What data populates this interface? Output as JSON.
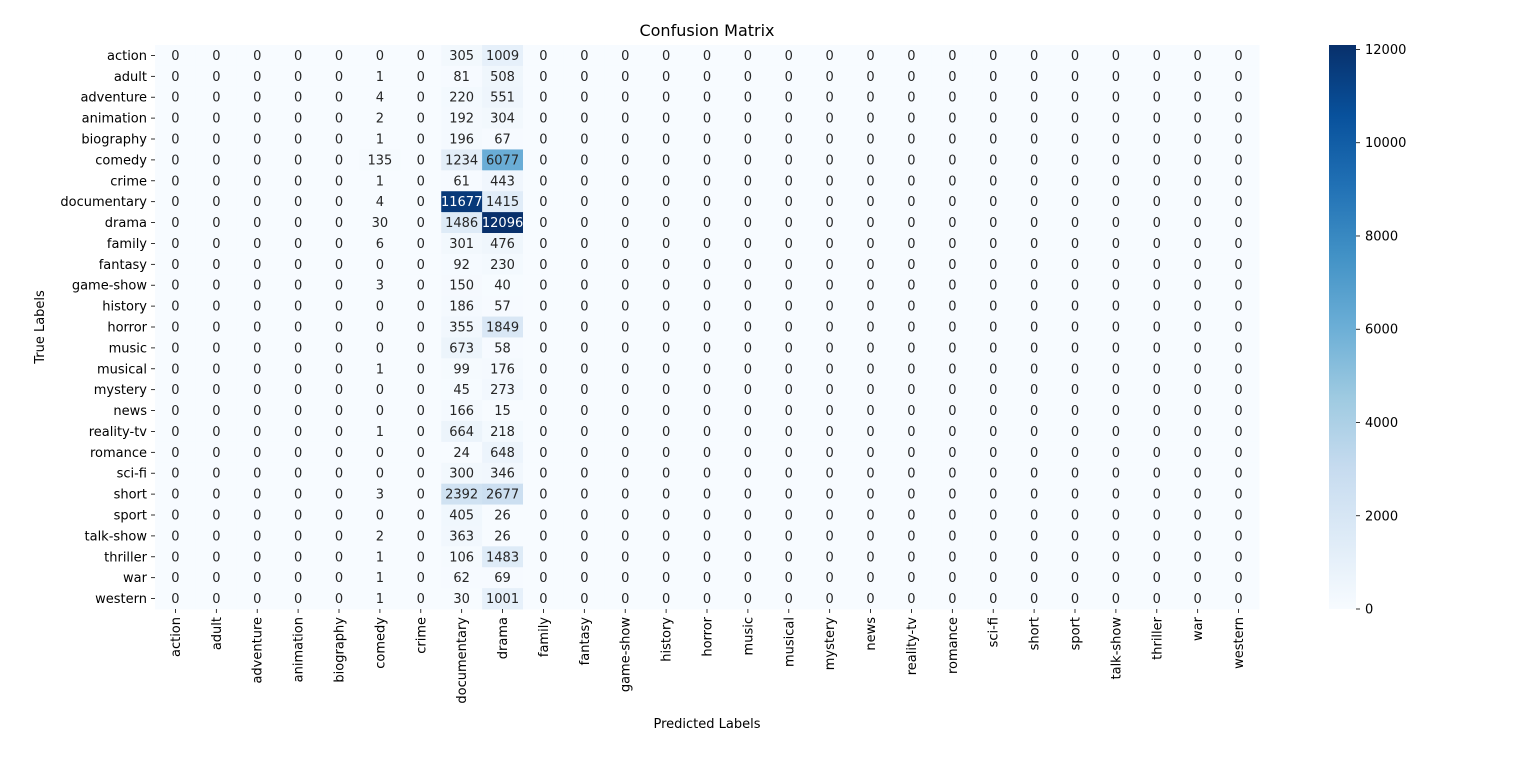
{
  "chart_data": {
    "type": "heatmap",
    "title": "Confusion Matrix",
    "xlabel": "Predicted Labels",
    "ylabel": "True Labels",
    "labels": [
      "action",
      "adult",
      "adventure",
      "animation",
      "biography",
      "comedy",
      "crime",
      "documentary",
      "drama",
      "family",
      "fantasy",
      "game-show",
      "history",
      "horror",
      "music",
      "musical",
      "mystery",
      "news",
      "reality-tv",
      "romance",
      "sci-fi",
      "short",
      "sport",
      "talk-show",
      "thriller",
      "war",
      "western"
    ],
    "matrix": [
      [
        0,
        0,
        0,
        0,
        0,
        0,
        0,
        305,
        1009,
        0,
        0,
        0,
        0,
        0,
        0,
        0,
        0,
        0,
        0,
        0,
        0,
        0,
        0,
        0,
        0,
        0,
        0
      ],
      [
        0,
        0,
        0,
        0,
        0,
        1,
        0,
        81,
        508,
        0,
        0,
        0,
        0,
        0,
        0,
        0,
        0,
        0,
        0,
        0,
        0,
        0,
        0,
        0,
        0,
        0,
        0
      ],
      [
        0,
        0,
        0,
        0,
        0,
        4,
        0,
        220,
        551,
        0,
        0,
        0,
        0,
        0,
        0,
        0,
        0,
        0,
        0,
        0,
        0,
        0,
        0,
        0,
        0,
        0,
        0
      ],
      [
        0,
        0,
        0,
        0,
        0,
        2,
        0,
        192,
        304,
        0,
        0,
        0,
        0,
        0,
        0,
        0,
        0,
        0,
        0,
        0,
        0,
        0,
        0,
        0,
        0,
        0,
        0
      ],
      [
        0,
        0,
        0,
        0,
        0,
        1,
        0,
        196,
        67,
        0,
        0,
        0,
        0,
        0,
        0,
        0,
        0,
        0,
        0,
        0,
        0,
        0,
        0,
        0,
        0,
        0,
        0
      ],
      [
        0,
        0,
        0,
        0,
        0,
        135,
        0,
        1234,
        6077,
        0,
        0,
        0,
        0,
        0,
        0,
        0,
        0,
        0,
        0,
        0,
        0,
        0,
        0,
        0,
        0,
        0,
        0
      ],
      [
        0,
        0,
        0,
        0,
        0,
        1,
        0,
        61,
        443,
        0,
        0,
        0,
        0,
        0,
        0,
        0,
        0,
        0,
        0,
        0,
        0,
        0,
        0,
        0,
        0,
        0,
        0
      ],
      [
        0,
        0,
        0,
        0,
        0,
        4,
        0,
        11677,
        1415,
        0,
        0,
        0,
        0,
        0,
        0,
        0,
        0,
        0,
        0,
        0,
        0,
        0,
        0,
        0,
        0,
        0,
        0
      ],
      [
        0,
        0,
        0,
        0,
        0,
        30,
        0,
        1486,
        12096,
        0,
        0,
        0,
        0,
        0,
        0,
        0,
        0,
        0,
        0,
        0,
        0,
        0,
        0,
        0,
        0,
        0,
        0
      ],
      [
        0,
        0,
        0,
        0,
        0,
        6,
        0,
        301,
        476,
        0,
        0,
        0,
        0,
        0,
        0,
        0,
        0,
        0,
        0,
        0,
        0,
        0,
        0,
        0,
        0,
        0,
        0
      ],
      [
        0,
        0,
        0,
        0,
        0,
        0,
        0,
        92,
        230,
        0,
        0,
        0,
        0,
        0,
        0,
        0,
        0,
        0,
        0,
        0,
        0,
        0,
        0,
        0,
        0,
        0,
        0
      ],
      [
        0,
        0,
        0,
        0,
        0,
        3,
        0,
        150,
        40,
        0,
        0,
        0,
        0,
        0,
        0,
        0,
        0,
        0,
        0,
        0,
        0,
        0,
        0,
        0,
        0,
        0,
        0
      ],
      [
        0,
        0,
        0,
        0,
        0,
        0,
        0,
        186,
        57,
        0,
        0,
        0,
        0,
        0,
        0,
        0,
        0,
        0,
        0,
        0,
        0,
        0,
        0,
        0,
        0,
        0,
        0
      ],
      [
        0,
        0,
        0,
        0,
        0,
        0,
        0,
        355,
        1849,
        0,
        0,
        0,
        0,
        0,
        0,
        0,
        0,
        0,
        0,
        0,
        0,
        0,
        0,
        0,
        0,
        0,
        0
      ],
      [
        0,
        0,
        0,
        0,
        0,
        0,
        0,
        673,
        58,
        0,
        0,
        0,
        0,
        0,
        0,
        0,
        0,
        0,
        0,
        0,
        0,
        0,
        0,
        0,
        0,
        0,
        0
      ],
      [
        0,
        0,
        0,
        0,
        0,
        1,
        0,
        99,
        176,
        0,
        0,
        0,
        0,
        0,
        0,
        0,
        0,
        0,
        0,
        0,
        0,
        0,
        0,
        0,
        0,
        0,
        0
      ],
      [
        0,
        0,
        0,
        0,
        0,
        0,
        0,
        45,
        273,
        0,
        0,
        0,
        0,
        0,
        0,
        0,
        0,
        0,
        0,
        0,
        0,
        0,
        0,
        0,
        0,
        0,
        0
      ],
      [
        0,
        0,
        0,
        0,
        0,
        0,
        0,
        166,
        15,
        0,
        0,
        0,
        0,
        0,
        0,
        0,
        0,
        0,
        0,
        0,
        0,
        0,
        0,
        0,
        0,
        0,
        0
      ],
      [
        0,
        0,
        0,
        0,
        0,
        1,
        0,
        664,
        218,
        0,
        0,
        0,
        0,
        0,
        0,
        0,
        0,
        0,
        0,
        0,
        0,
        0,
        0,
        0,
        0,
        0,
        0
      ],
      [
        0,
        0,
        0,
        0,
        0,
        0,
        0,
        24,
        648,
        0,
        0,
        0,
        0,
        0,
        0,
        0,
        0,
        0,
        0,
        0,
        0,
        0,
        0,
        0,
        0,
        0,
        0
      ],
      [
        0,
        0,
        0,
        0,
        0,
        0,
        0,
        300,
        346,
        0,
        0,
        0,
        0,
        0,
        0,
        0,
        0,
        0,
        0,
        0,
        0,
        0,
        0,
        0,
        0,
        0,
        0
      ],
      [
        0,
        0,
        0,
        0,
        0,
        3,
        0,
        2392,
        2677,
        0,
        0,
        0,
        0,
        0,
        0,
        0,
        0,
        0,
        0,
        0,
        0,
        0,
        0,
        0,
        0,
        0,
        0
      ],
      [
        0,
        0,
        0,
        0,
        0,
        0,
        0,
        405,
        26,
        0,
        0,
        0,
        0,
        0,
        0,
        0,
        0,
        0,
        0,
        0,
        0,
        0,
        0,
        0,
        0,
        0,
        0
      ],
      [
        0,
        0,
        0,
        0,
        0,
        2,
        0,
        363,
        26,
        0,
        0,
        0,
        0,
        0,
        0,
        0,
        0,
        0,
        0,
        0,
        0,
        0,
        0,
        0,
        0,
        0,
        0
      ],
      [
        0,
        0,
        0,
        0,
        0,
        1,
        0,
        106,
        1483,
        0,
        0,
        0,
        0,
        0,
        0,
        0,
        0,
        0,
        0,
        0,
        0,
        0,
        0,
        0,
        0,
        0,
        0
      ],
      [
        0,
        0,
        0,
        0,
        0,
        1,
        0,
        62,
        69,
        0,
        0,
        0,
        0,
        0,
        0,
        0,
        0,
        0,
        0,
        0,
        0,
        0,
        0,
        0,
        0,
        0,
        0
      ],
      [
        0,
        0,
        0,
        0,
        0,
        1,
        0,
        30,
        1001,
        0,
        0,
        0,
        0,
        0,
        0,
        0,
        0,
        0,
        0,
        0,
        0,
        0,
        0,
        0,
        0,
        0,
        0
      ]
    ],
    "colorbar": {
      "colormap": "Blues",
      "vmin": 0,
      "vmax": 12096,
      "ticks": [
        0,
        2000,
        4000,
        6000,
        8000,
        10000,
        12000
      ],
      "tick_labels": [
        "0",
        "2000",
        "4000",
        "6000",
        "8000",
        "10000",
        "12000"
      ]
    },
    "grid": false,
    "legend": "none"
  }
}
